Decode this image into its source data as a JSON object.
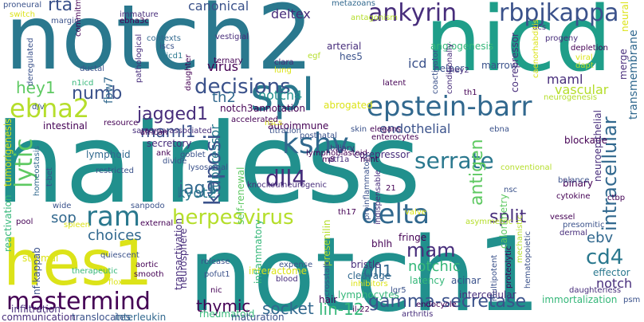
{
  "palette": {
    "teal": "#21908d",
    "tealDark": "#2a788e",
    "navy": "#31688e",
    "indigo": "#3b528b",
    "purple": "#472d7b",
    "deepPurple": "#440154",
    "green": "#35b779",
    "lightGreen": "#5ec962",
    "lime": "#b5de2b",
    "yellow": "#dce319",
    "cyan": "#1f9e89"
  },
  "words": [
    {
      "text": "hairless",
      "color": "#21908d"
    },
    {
      "text": "notch2",
      "color": "#2a788e"
    },
    {
      "text": "nicd",
      "color": "#1f9e89"
    },
    {
      "text": "notch1",
      "color": "#21908d"
    },
    {
      "text": "hes1",
      "color": "#dce319"
    },
    {
      "text": "epstein-barr",
      "color": "#31688e"
    },
    {
      "text": "spl",
      "color": "#2a788e"
    },
    {
      "text": "ankyrin",
      "color": "#472d7b"
    },
    {
      "text": "rbpjkappa",
      "color": "#3b528b"
    },
    {
      "text": "mastermind",
      "color": "#440154"
    },
    {
      "text": "ebna2",
      "color": "#b5de2b"
    },
    {
      "text": "kshv",
      "color": "#31688e"
    },
    {
      "text": "ram",
      "color": "#2a788e"
    },
    {
      "text": "delta",
      "color": "#31688e"
    },
    {
      "text": "decisions",
      "color": "#3b528b"
    },
    {
      "text": "herpesvirus",
      "color": "#b5de2b"
    },
    {
      "text": "cd4",
      "color": "#2a788e"
    },
    {
      "text": "mam",
      "color": "#472d7b"
    },
    {
      "text": "gamma-secretase",
      "color": "#3b528b"
    },
    {
      "text": "dll4",
      "color": "#472d7b"
    },
    {
      "text": "jagged1",
      "color": "#472d7b"
    },
    {
      "text": "serrate",
      "color": "#2a788e"
    },
    {
      "text": "kaposi",
      "color": "#3b528b"
    },
    {
      "text": "intracellular",
      "color": "#31688e"
    },
    {
      "text": "lytic",
      "color": "#5ec962"
    },
    {
      "text": "socket",
      "color": "#31688e"
    },
    {
      "text": "lin-12",
      "color": "#35b779"
    },
    {
      "text": "thymic",
      "color": "#440154"
    },
    {
      "text": "split",
      "color": "#472d7b"
    },
    {
      "text": "antigen",
      "color": "#5ec962"
    },
    {
      "text": "notch",
      "color": "#472d7b"
    },
    {
      "text": "rta",
      "color": "#3b528b"
    },
    {
      "text": "canonical",
      "color": "#3b528b"
    },
    {
      "text": "deltex",
      "color": "#472d7b"
    },
    {
      "text": "hey1",
      "color": "#5ec962"
    },
    {
      "text": "numb",
      "color": "#3b528b"
    },
    {
      "text": "maml1",
      "color": "#3b528b"
    },
    {
      "text": "th2",
      "color": "#31688e"
    },
    {
      "text": "notch4",
      "color": "#21908d"
    },
    {
      "text": "jag1",
      "color": "#31688e"
    },
    {
      "text": "kyot2",
      "color": "#2a788e"
    },
    {
      "text": "sop",
      "color": "#31688e"
    },
    {
      "text": "choices",
      "color": "#31688e"
    },
    {
      "text": "dll1",
      "color": "#31688e"
    },
    {
      "text": "notchic",
      "color": "#35b779"
    },
    {
      "text": "ebv",
      "color": "#31688e"
    },
    {
      "text": "endothelial",
      "color": "#3b528b"
    },
    {
      "text": "virus",
      "color": "#440154"
    },
    {
      "text": "suppressor",
      "color": "#2a788e"
    },
    {
      "text": "icd",
      "color": "#3b528b"
    },
    {
      "text": "maml",
      "color": "#472d7b"
    },
    {
      "text": "vascular",
      "color": "#b5de2b"
    },
    {
      "text": "angiogenesis",
      "color": "#35b779"
    },
    {
      "text": "hes5",
      "color": "#3b528b"
    },
    {
      "text": "arterial",
      "color": "#472d7b"
    },
    {
      "text": "marrow",
      "color": "#3b528b"
    },
    {
      "text": "helper",
      "color": "#3b528b"
    },
    {
      "text": "co-repressor",
      "color": "#472d7b"
    },
    {
      "text": "fbw7",
      "color": "#31688e"
    },
    {
      "text": "notch3",
      "color": "#440154"
    },
    {
      "text": "annotation",
      "color": "#440154"
    },
    {
      "text": "autoimmune",
      "color": "#440154"
    },
    {
      "text": "secretory",
      "color": "#472d7b"
    },
    {
      "text": "abrogated",
      "color": "#dce319"
    },
    {
      "text": "calorimetry",
      "color": "#5ec962"
    },
    {
      "text": "corepressor",
      "color": "#472d7b"
    },
    {
      "text": "binary",
      "color": "#440154"
    },
    {
      "text": "blockade",
      "color": "#440154"
    },
    {
      "text": "effector",
      "color": "#2a788e"
    },
    {
      "text": "latency",
      "color": "#35b779"
    },
    {
      "text": "cleavage",
      "color": "#31688e"
    },
    {
      "text": "bristle",
      "color": "#472d7b"
    },
    {
      "text": "fringe",
      "color": "#440154"
    },
    {
      "text": "bhlh",
      "color": "#440154"
    },
    {
      "text": "acinar",
      "color": "#3b528b"
    },
    {
      "text": "intercellular",
      "color": "#472d7b"
    },
    {
      "text": "immortalization",
      "color": "#35b779"
    },
    {
      "text": "lymphocytes",
      "color": "#35b779"
    },
    {
      "text": "hair",
      "color": "#440154"
    },
    {
      "text": "presenilin",
      "color": "#b5de2b"
    },
    {
      "text": "interactome",
      "color": "#dce319"
    },
    {
      "text": "inflammatory",
      "color": "#35b779"
    },
    {
      "text": "neurosphere",
      "color": "#472d7b"
    },
    {
      "text": "rheumatoid",
      "color": "#35b779"
    },
    {
      "text": "self-renewal",
      "color": "#5ec962"
    },
    {
      "text": "lymphoid",
      "color": "#31688e"
    },
    {
      "text": "intestinal",
      "color": "#440154"
    },
    {
      "text": "stromal",
      "color": "#dce319"
    },
    {
      "text": "tumorigenesis",
      "color": "#dce319"
    },
    {
      "text": "reactivation",
      "color": "#35b779"
    },
    {
      "text": "infiltration",
      "color": "#472d7b"
    },
    {
      "text": "nf-kappab",
      "color": "#3b528b"
    },
    {
      "text": "communication",
      "color": "#472d7b"
    },
    {
      "text": "translocates",
      "color": "#3b528b"
    },
    {
      "text": "interleukin",
      "color": "#31688e"
    },
    {
      "text": "maturation",
      "color": "#3b528b"
    },
    {
      "text": "transactivation",
      "color": "#472d7b"
    },
    {
      "text": "neuroepithelial",
      "color": "#472d7b"
    },
    {
      "text": "transmembrane",
      "color": "#31688e"
    },
    {
      "text": "merge",
      "color": "#472d7b"
    },
    {
      "text": "neural",
      "color": "#dce319"
    },
    {
      "text": "metazoans",
      "color": "#31688e"
    },
    {
      "text": "ebna3c",
      "color": "#440154"
    },
    {
      "text": "contexts",
      "color": "#31688e"
    },
    {
      "text": "iscs",
      "color": "#3b528b"
    },
    {
      "text": "nicd1",
      "color": "#2a788e"
    },
    {
      "text": "proneural",
      "color": "#3b528b"
    },
    {
      "text": "switch",
      "color": "#dce319"
    },
    {
      "text": "margin",
      "color": "#3b528b"
    },
    {
      "text": "commitment",
      "color": "#440154"
    },
    {
      "text": "immature",
      "color": "#472d7b"
    },
    {
      "text": "african",
      "color": "#440154"
    },
    {
      "text": "ductal",
      "color": "#3b528b"
    },
    {
      "text": "deregulated",
      "color": "#3b528b"
    },
    {
      "text": "n1icd",
      "color": "#35b779"
    },
    {
      "text": "pathological",
      "color": "#472d7b"
    },
    {
      "text": "daughter",
      "color": "#440154"
    },
    {
      "text": "vestigial",
      "color": "#472d7b"
    },
    {
      "text": "ternary",
      "color": "#440154"
    },
    {
      "text": "clara",
      "color": "#472d7b"
    },
    {
      "text": "lung",
      "color": "#dce319"
    },
    {
      "text": "egf",
      "color": "#b5de2b"
    },
    {
      "text": "antagonism",
      "color": "#b5de2b"
    },
    {
      "text": "coactivator",
      "color": "#3b528b"
    },
    {
      "text": "conditionally",
      "color": "#472d7b"
    },
    {
      "text": "latent",
      "color": "#440154"
    },
    {
      "text": "dcs",
      "color": "#472d7b"
    },
    {
      "text": "progeny",
      "color": "#472d7b"
    },
    {
      "text": "depletion",
      "color": "#440154"
    },
    {
      "text": "viral",
      "color": "#dce319"
    },
    {
      "text": "dapt",
      "color": "#b5de2b"
    },
    {
      "text": "hey2",
      "color": "#472d7b"
    },
    {
      "text": "caenorhabditis",
      "color": "#dce319"
    },
    {
      "text": "th1",
      "color": "#440154"
    },
    {
      "text": "elegans",
      "color": "#440154"
    },
    {
      "text": "resource",
      "color": "#440154"
    },
    {
      "text": "nscs",
      "color": "#dce319"
    },
    {
      "text": "titration",
      "color": "#3b528b"
    },
    {
      "text": "accelerated",
      "color": "#440154"
    },
    {
      "text": "sarcoma-associated",
      "color": "#472d7b"
    },
    {
      "text": "postnatal",
      "color": "#3b528b"
    },
    {
      "text": "biliary",
      "color": "#472d7b"
    },
    {
      "text": "m8",
      "color": "#440154"
    },
    {
      "text": "goblet",
      "color": "#3b528b"
    },
    {
      "text": "ank",
      "color": "#440154"
    },
    {
      "text": "divide",
      "color": "#3b528b"
    },
    {
      "text": "t-bet",
      "color": "#3b528b"
    },
    {
      "text": "homeostasis",
      "color": "#31688e"
    },
    {
      "text": "lymphoblastoid",
      "color": "#440154"
    },
    {
      "text": "ptf1a",
      "color": "#472d7b"
    },
    {
      "text": "knockout",
      "color": "#472d7b"
    },
    {
      "text": "neurogenic",
      "color": "#472d7b"
    },
    {
      "text": "skin",
      "color": "#3b528b"
    },
    {
      "text": "pool",
      "color": "#440154"
    },
    {
      "text": "wide",
      "color": "#3b528b"
    },
    {
      "text": "sanpodo",
      "color": "#3b528b"
    },
    {
      "text": "external",
      "color": "#440154"
    },
    {
      "text": "spleen",
      "color": "#dce319"
    },
    {
      "text": "quiescent",
      "color": "#3b528b"
    },
    {
      "text": "aortic",
      "color": "#440154"
    },
    {
      "text": "smooth",
      "color": "#440154"
    },
    {
      "text": "therapeutic",
      "color": "#35b779"
    },
    {
      "text": "floxed",
      "color": "#dce319"
    },
    {
      "text": "release",
      "color": "#3b528b"
    },
    {
      "text": "pofut1",
      "color": "#3b528b"
    },
    {
      "text": "nic",
      "color": "#440154"
    },
    {
      "text": "blood",
      "color": "#472d7b"
    },
    {
      "text": "expense",
      "color": "#3b528b"
    },
    {
      "text": "crosstalk",
      "color": "#3b528b"
    },
    {
      "text": "inhibitors",
      "color": "#dce319"
    },
    {
      "text": "il-22",
      "color": "#440154"
    },
    {
      "text": "lgr5",
      "color": "#3b528b"
    },
    {
      "text": "endocycle",
      "color": "#440154"
    },
    {
      "text": "arthritis",
      "color": "#472d7b"
    },
    {
      "text": "proinflammatory",
      "color": "#3b528b"
    },
    {
      "text": "indispensable",
      "color": "#472d7b"
    },
    {
      "text": "21",
      "color": "#440154"
    },
    {
      "text": "th17",
      "color": "#440154"
    },
    {
      "text": "valve",
      "color": "#dce319"
    },
    {
      "text": "asymmetric",
      "color": "#b5de2b"
    },
    {
      "text": "vessel",
      "color": "#440154"
    },
    {
      "text": "presomitic",
      "color": "#3b528b"
    },
    {
      "text": "dermal",
      "color": "#472d7b"
    },
    {
      "text": "multipotent",
      "color": "#3b528b"
    },
    {
      "text": "proteolytic",
      "color": "#440154"
    },
    {
      "text": "hematopoietic",
      "color": "#3b528b"
    },
    {
      "text": "mechanistic",
      "color": "#b5de2b"
    },
    {
      "text": "daughterless",
      "color": "#472d7b"
    },
    {
      "text": "psm",
      "color": "#3b528b"
    },
    {
      "text": "cytokine",
      "color": "#440154"
    },
    {
      "text": "ctbp",
      "color": "#440154"
    },
    {
      "text": "balance",
      "color": "#3b528b"
    },
    {
      "text": "nsc",
      "color": "#3b528b"
    },
    {
      "text": "conventional",
      "color": "#b5de2b"
    },
    {
      "text": "enterocytes",
      "color": "#440154"
    },
    {
      "text": "ebna",
      "color": "#3b528b"
    },
    {
      "text": "neurogenesis",
      "color": "#b5de2b"
    },
    {
      "text": "d/v",
      "color": "#3b528b"
    },
    {
      "text": "restricted",
      "color": "#3b528b"
    },
    {
      "text": "mint",
      "color": "#440154"
    },
    {
      "text": "lysosomal",
      "color": "#3b528b"
    }
  ]
}
